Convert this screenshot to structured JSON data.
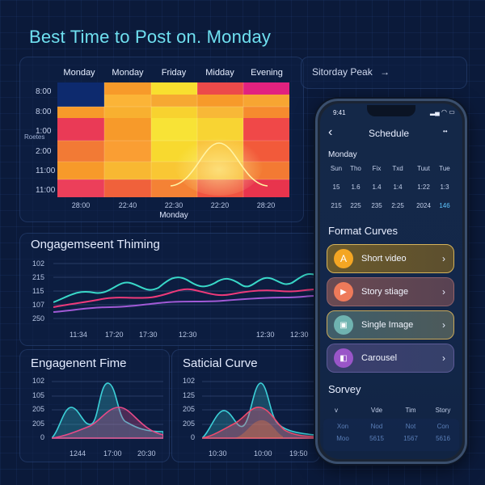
{
  "title": "Best Time to Post on. Monday",
  "heatmap": {
    "peak_label": "Sitorday Peak",
    "arrow": "→",
    "columns": [
      "Monday",
      "Monday",
      "Friday",
      "Midday",
      "Evening"
    ],
    "rows": [
      "8:00",
      "8:00",
      "1:00",
      "2:00",
      "11:00",
      "11:00"
    ],
    "side_label": "Roetes",
    "x_labels": [
      "28:00",
      "22:40",
      "22:30",
      "22:20",
      "28:20"
    ],
    "x_title": "Monday",
    "colors": {
      "navy": "#0d2a6e",
      "orange": "#f79a2a",
      "yellow": "#f8df2f",
      "red": "#f03d4e",
      "magenta": "#e2227f",
      "pink": "#ec2f63",
      "lightorange": "#fbb437"
    }
  },
  "engagement": {
    "title": "Ongagemseent Thiming",
    "y_labels": [
      "102",
      "215",
      "115",
      "107",
      "250"
    ],
    "x_labels": [
      "11:34",
      "17:20",
      "17:30",
      "12:30",
      "12:30",
      "12:30"
    ]
  },
  "small_a": {
    "title": "Engagenent Fime",
    "y_labels": [
      "102",
      "105",
      "205",
      "205",
      "0"
    ],
    "x_labels": [
      "1244",
      "17:00",
      "20:30"
    ]
  },
  "small_b": {
    "title": "Saticial Curve",
    "y_labels": [
      "102",
      "125",
      "205",
      "205",
      "0"
    ],
    "x_labels": [
      "10:30",
      "10:00",
      "19:50"
    ]
  },
  "phone": {
    "time": "9:41",
    "header": "Schedule",
    "back_icon": "‹",
    "more_icon": "••",
    "month": "Monday",
    "weekdays": [
      "Sun",
      "Tho",
      "Fix",
      "Txd",
      "Tuut",
      "Tue"
    ],
    "row1": [
      "15",
      "1.6",
      "1.4",
      "1:4",
      "1:22",
      "1:3"
    ],
    "row2": [
      "215",
      "225",
      "235",
      "2:25",
      "2024",
      "146"
    ],
    "format_title": "Format Curves",
    "formats": [
      {
        "label": "Short video",
        "icon": "A"
      },
      {
        "label": "Story stiage",
        "icon": "▶"
      },
      {
        "label": "Single Image",
        "icon": "▣"
      },
      {
        "label": "Carousel",
        "icon": "◧"
      }
    ],
    "chevron": "›",
    "survey_title": "Sorvey",
    "survey_cols": [
      "v",
      "Vde",
      "Tim",
      "Story"
    ],
    "survey_row1": [
      "Xon",
      "Nod",
      "Not",
      "Con"
    ],
    "survey_row2": [
      "Moo",
      "5615",
      "1567",
      "5616"
    ]
  }
}
